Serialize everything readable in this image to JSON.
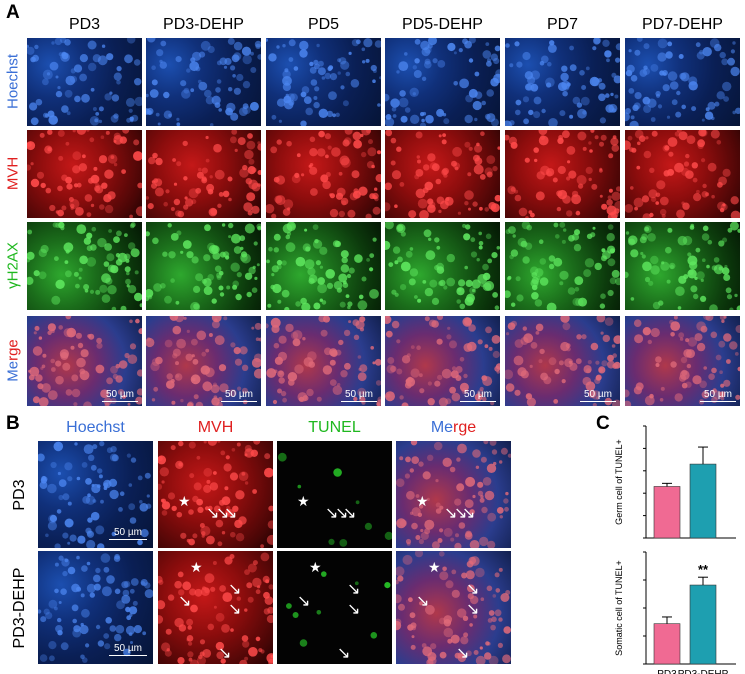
{
  "panelA": {
    "letter": "A",
    "columns": [
      "PD3",
      "PD3-DEHP",
      "PD5",
      "PD5-DEHP",
      "PD7",
      "PD7-DEHP"
    ],
    "rows": [
      "Hoechst",
      "MVH",
      "γH2AX",
      "Merge"
    ],
    "merge_row_parts": [
      "Me",
      "rge"
    ],
    "scalebar": "50 µm",
    "row_colors": [
      "#3a6fd6",
      "#e02020",
      "#1fb81f"
    ]
  },
  "panelB": {
    "letter": "B",
    "columns": [
      "Hoechst",
      "MVH",
      "TUNEL",
      "Merge"
    ],
    "merge_parts": [
      "Me",
      "rge"
    ],
    "rows": [
      "PD3",
      "PD3-DEHP"
    ],
    "scalebar": "50 µm"
  },
  "panelC": {
    "letter": "C",
    "chart_data": [
      {
        "type": "bar",
        "categories": [
          "PD3",
          "PD3-DEHP"
        ],
        "values": [
          11.5,
          16.5
        ],
        "errors": [
          0.7,
          3.8
        ],
        "colors": [
          "#f06a93",
          "#1e9fb0"
        ],
        "ylabel": "Germ cell of TUNEL+",
        "ylim": [
          0,
          25
        ],
        "yticks": [
          0,
          5,
          10,
          15,
          20,
          25
        ],
        "annotations": []
      },
      {
        "type": "bar",
        "categories": [
          "PD3",
          "PD3-DEHP"
        ],
        "values": [
          7.2,
          14.1
        ],
        "errors": [
          1.2,
          1.4
        ],
        "colors": [
          "#f06a93",
          "#1e9fb0"
        ],
        "ylabel": "Somatic cell of TUNEL+",
        "ylim": [
          0,
          20
        ],
        "yticks": [
          0,
          5,
          10,
          15,
          20
        ],
        "annotations": [
          "",
          "**"
        ],
        "xlabels": [
          "PD3",
          "PD3-DEHP"
        ]
      }
    ]
  }
}
